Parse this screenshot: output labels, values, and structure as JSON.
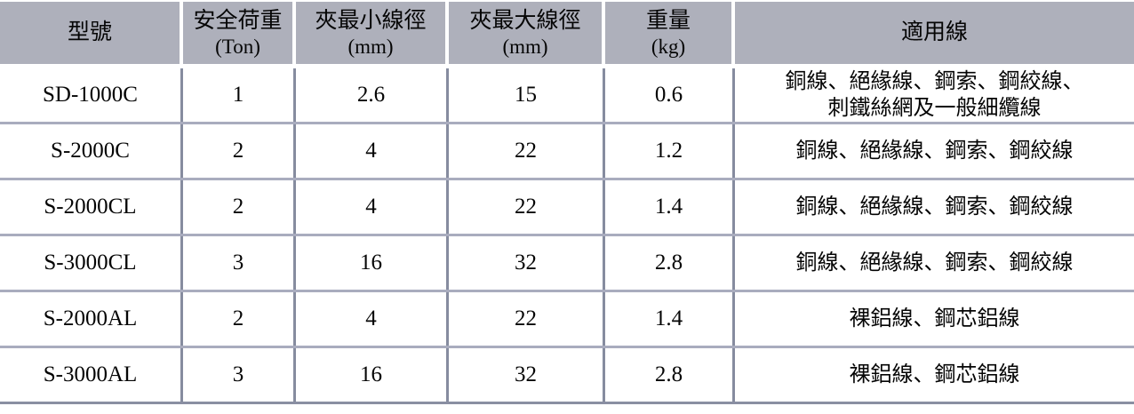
{
  "table": {
    "colors": {
      "header_bg": "#aeb0bb",
      "vertical_border": "#868c9f",
      "horizontal_border": "#a9acbe",
      "bottom_border": "#8a8fa2",
      "text": "#050505"
    },
    "columns": [
      {
        "label": "型號",
        "unit": ""
      },
      {
        "label": "安全荷重",
        "unit": "(Ton)"
      },
      {
        "label": "夾最小線徑",
        "unit": "(mm)"
      },
      {
        "label": "夾最大線徑",
        "unit": "(mm)"
      },
      {
        "label": "重量",
        "unit": "(kg)"
      },
      {
        "label": "適用線",
        "unit": ""
      }
    ],
    "rows": [
      {
        "model": "SD-1000C",
        "load_ton": "1",
        "min_mm": "2.6",
        "max_mm": "15",
        "weight_kg": "0.6",
        "wires_line1": "銅線、絕緣線、鋼索、鋼絞線、",
        "wires_line2": "刺鐵絲網及一般細纜線"
      },
      {
        "model": "S-2000C",
        "load_ton": "2",
        "min_mm": "4",
        "max_mm": "22",
        "weight_kg": "1.2",
        "wires_line1": "銅線、絕緣線、鋼索、鋼絞線",
        "wires_line2": ""
      },
      {
        "model": "S-2000CL",
        "load_ton": "2",
        "min_mm": "4",
        "max_mm": "22",
        "weight_kg": "1.4",
        "wires_line1": "銅線、絕緣線、鋼索、鋼絞線",
        "wires_line2": ""
      },
      {
        "model": "S-3000CL",
        "load_ton": "3",
        "min_mm": "16",
        "max_mm": "32",
        "weight_kg": "2.8",
        "wires_line1": "銅線、絕緣線、鋼索、鋼絞線",
        "wires_line2": ""
      },
      {
        "model": "S-2000AL",
        "load_ton": "2",
        "min_mm": "4",
        "max_mm": "22",
        "weight_kg": "1.4",
        "wires_line1": "裸鋁線、鋼芯鋁線",
        "wires_line2": ""
      },
      {
        "model": "S-3000AL",
        "load_ton": "3",
        "min_mm": "16",
        "max_mm": "32",
        "weight_kg": "2.8",
        "wires_line1": "裸鋁線、鋼芯鋁線",
        "wires_line2": ""
      }
    ]
  }
}
